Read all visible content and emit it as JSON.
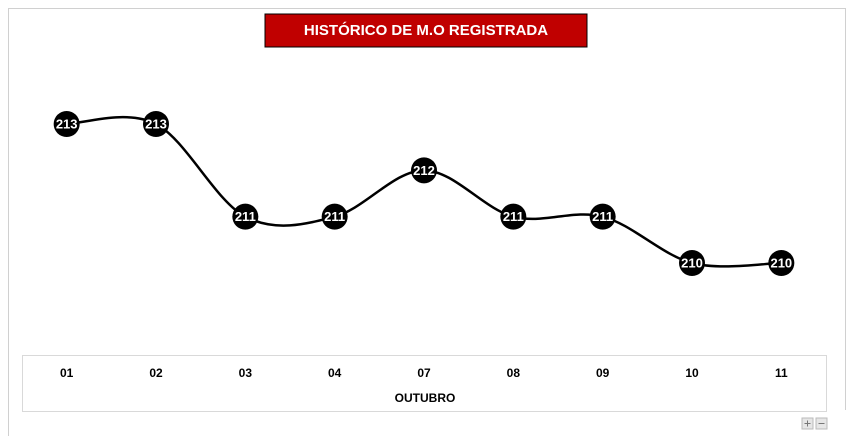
{
  "chart_data": {
    "type": "line",
    "title": "HISTÓRICO DE M.O REGISTRADA",
    "x_label": "OUTUBRO",
    "categories": [
      "01",
      "02",
      "03",
      "04",
      "07",
      "08",
      "09",
      "10",
      "11"
    ],
    "series": [
      {
        "color": "#000000",
        "values": [
          213,
          213,
          211,
          211,
          212,
          211,
          211,
          210,
          210
        ]
      }
    ],
    "smooth": true
  }
}
